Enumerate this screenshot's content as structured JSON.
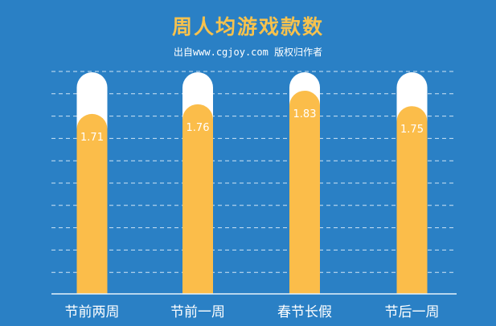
{
  "chart_data": {
    "type": "bar",
    "title": "周人均游戏款数",
    "categories": [
      "节前两周",
      "节前一周",
      "春节长假",
      "节后一周"
    ],
    "values": [
      1.71,
      1.76,
      1.83,
      1.75
    ],
    "data_labels": [
      "1.71",
      "1.76",
      "1.83",
      "1.75"
    ],
    "grid": "dashed horizontal",
    "colors": {
      "background": "#2a80c5",
      "bar": "#fbbd4a",
      "track": "#ffffff",
      "title": "#f7c24d"
    }
  },
  "watermark": "出自www.cgjoy.com 版权归作者"
}
